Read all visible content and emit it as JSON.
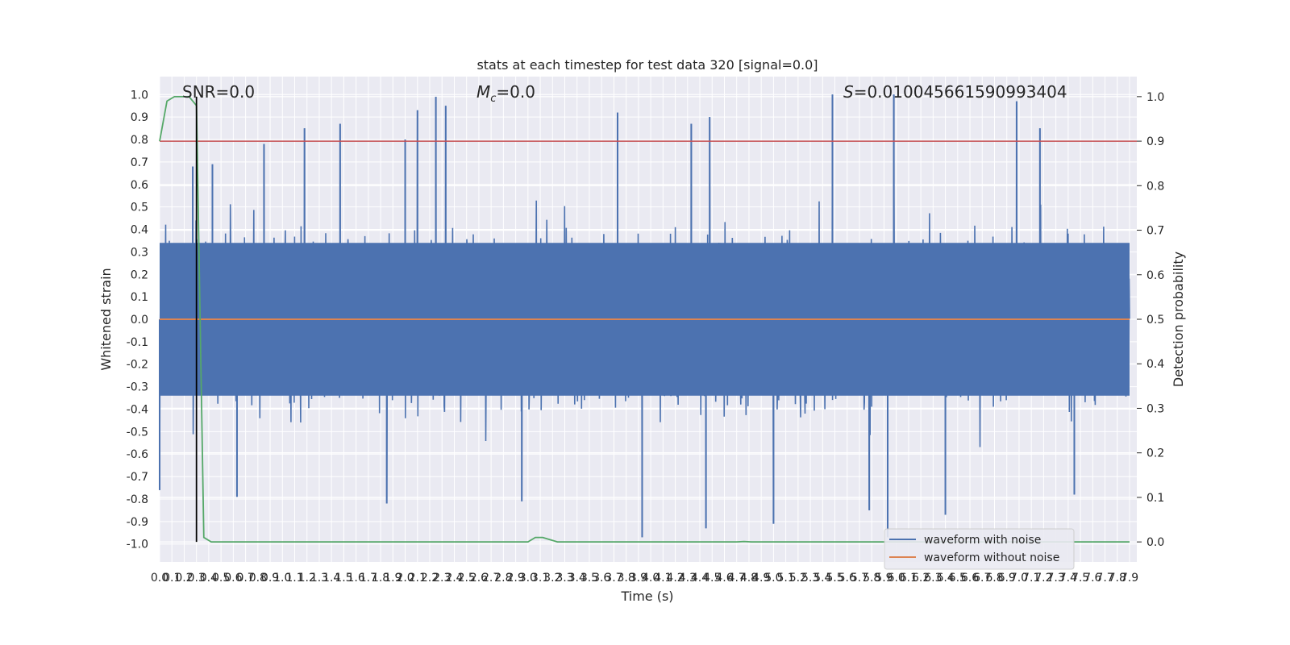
{
  "chart_data": {
    "type": "line",
    "title": "stats at each timestep for test data 320 [signal=0.0]",
    "xlabel": "Time (s)",
    "ylabel": "Whitened strain",
    "y2label": "Detection probability",
    "xlim": [
      0,
      7.9
    ],
    "ylim": [
      -1.08,
      1.08
    ],
    "y2lim": [
      -0.045,
      1.045
    ],
    "grid": true,
    "legend_position": "lower-right",
    "x_tick_labels": [
      "0.0",
      "0.1",
      "0.2",
      "0.3",
      "0.4",
      "0.5",
      "0.6",
      "0.7",
      "0.8",
      "0.9",
      "1.0",
      "1.1",
      "1.2",
      "1.3",
      "1.4",
      "1.5",
      "1.6",
      "1.7",
      "1.8",
      "1.9",
      "2.0",
      "2.1",
      "2.2",
      "2.3",
      "2.4",
      "2.5",
      "2.6",
      "2.7",
      "2.8",
      "2.9",
      "3.0",
      "3.1",
      "3.2",
      "3.3",
      "3.4",
      "3.5",
      "3.6",
      "3.7",
      "3.8",
      "3.9",
      "4.0",
      "4.1",
      "4.2",
      "4.3",
      "4.4",
      "4.5",
      "4.6",
      "4.7",
      "4.8",
      "4.9",
      "5.0",
      "5.1",
      "5.2",
      "5.3",
      "5.4",
      "5.5",
      "5.6",
      "5.7",
      "5.8",
      "5.9",
      "6.0",
      "6.1",
      "6.2",
      "6.3",
      "6.4",
      "6.5",
      "6.6",
      "6.7",
      "6.8",
      "6.9",
      "7.0",
      "7.1",
      "7.2",
      "7.3",
      "7.4",
      "7.5",
      "7.6",
      "7.7",
      "7.8",
      "7.9"
    ],
    "y_tick_labels": [
      "1.0",
      "0.9",
      "0.8",
      "0.7",
      "0.6",
      "0.5",
      "0.4",
      "0.3",
      "0.2",
      "0.1",
      "0.0",
      "-0.1",
      "-0.2",
      "-0.3",
      "-0.4",
      "-0.5",
      "-0.6",
      "-0.7",
      "-0.8",
      "-0.9",
      "-1.0"
    ],
    "y2_tick_labels": [
      "1.0",
      "0.9",
      "0.8",
      "0.7",
      "0.6",
      "0.5",
      "0.4",
      "0.3",
      "0.2",
      "0.1",
      "0.0"
    ],
    "annotations": {
      "snr": "SNR=0.0",
      "mc_symbol": "M",
      "mc_subscript": "c",
      "mc_value": "=0.0",
      "s_symbol": "S",
      "s_value": "=0.010045661590993404"
    },
    "threshold": {
      "axis": "right",
      "value": 0.9,
      "color": "#c44e52"
    },
    "marker_line": {
      "x": 0.3,
      "color": "#000000"
    },
    "series": [
      {
        "name": "waveform with noise",
        "axis": "left",
        "color": "#4c72b0",
        "description_shape": "dense noise band roughly within ±0.4, spikes up to ±1.0",
        "envelope_upper_typical": 0.4,
        "envelope_lower_typical": -0.4,
        "spike_peaks": [
          {
            "x": 0.27,
            "y": 0.68
          },
          {
            "x": 0.43,
            "y": 0.69
          },
          {
            "x": 0.85,
            "y": 0.78
          },
          {
            "x": 1.18,
            "y": 0.85
          },
          {
            "x": 1.47,
            "y": 0.87
          },
          {
            "x": 2.0,
            "y": 0.8
          },
          {
            "x": 2.1,
            "y": 0.93
          },
          {
            "x": 2.25,
            "y": 0.99
          },
          {
            "x": 2.33,
            "y": 0.95
          },
          {
            "x": 3.73,
            "y": 0.92
          },
          {
            "x": 4.33,
            "y": 0.87
          },
          {
            "x": 4.48,
            "y": 0.9
          },
          {
            "x": 5.48,
            "y": 1.0
          },
          {
            "x": 5.98,
            "y": 1.0
          },
          {
            "x": 6.98,
            "y": 0.97
          },
          {
            "x": 7.17,
            "y": 0.85
          },
          {
            "x": 0.0,
            "y": -0.76
          },
          {
            "x": 0.63,
            "y": -0.79
          },
          {
            "x": 1.85,
            "y": -0.82
          },
          {
            "x": 2.95,
            "y": -0.81
          },
          {
            "x": 3.93,
            "y": -0.97
          },
          {
            "x": 4.45,
            "y": -0.93
          },
          {
            "x": 5.0,
            "y": -0.91
          },
          {
            "x": 5.78,
            "y": -0.85
          },
          {
            "x": 5.93,
            "y": -0.97
          },
          {
            "x": 6.4,
            "y": -0.87
          },
          {
            "x": 7.45,
            "y": -0.78
          }
        ]
      },
      {
        "name": "waveform without noise",
        "axis": "left",
        "color": "#dd8452",
        "x": [
          0,
          7.9
        ],
        "y": [
          0.0,
          0.0
        ]
      },
      {
        "name": "detection probability",
        "axis": "right",
        "color": "#55a868",
        "x": [
          0.0,
          0.06,
          0.12,
          0.18,
          0.24,
          0.3,
          0.36,
          0.42,
          3.0,
          3.06,
          3.12,
          3.18,
          3.24,
          4.7,
          4.76,
          4.82,
          7.9
        ],
        "y": [
          0.9,
          0.99,
          1.0,
          1.0,
          1.0,
          0.98,
          0.01,
          0.0,
          0.0,
          0.01,
          0.01,
          0.005,
          0.0,
          0.0,
          0.001,
          0.0,
          0.0
        ]
      }
    ]
  }
}
